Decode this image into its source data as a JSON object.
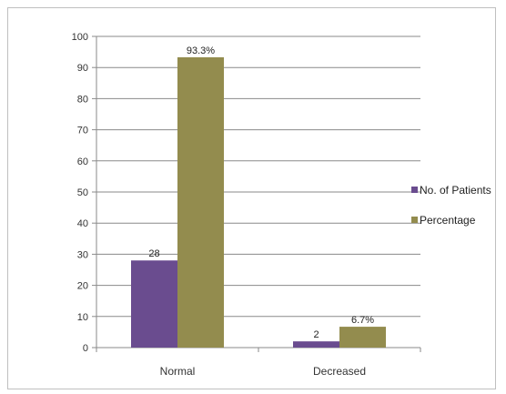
{
  "chart_data": {
    "type": "bar",
    "categories": [
      "Normal",
      "Decreased"
    ],
    "series": [
      {
        "name": "No. of Patients",
        "values": [
          28,
          2
        ],
        "labels": [
          "28",
          "2"
        ],
        "color": "#6a4c8f"
      },
      {
        "name": "Percentage",
        "values": [
          93.3,
          6.7
        ],
        "labels": [
          "93.3%",
          "6.7%"
        ],
        "color": "#938c4e"
      }
    ],
    "ylim": [
      0,
      100
    ],
    "yticks": [
      0,
      10,
      20,
      30,
      40,
      50,
      60,
      70,
      80,
      90,
      100
    ],
    "grid": true,
    "legend": "right"
  }
}
